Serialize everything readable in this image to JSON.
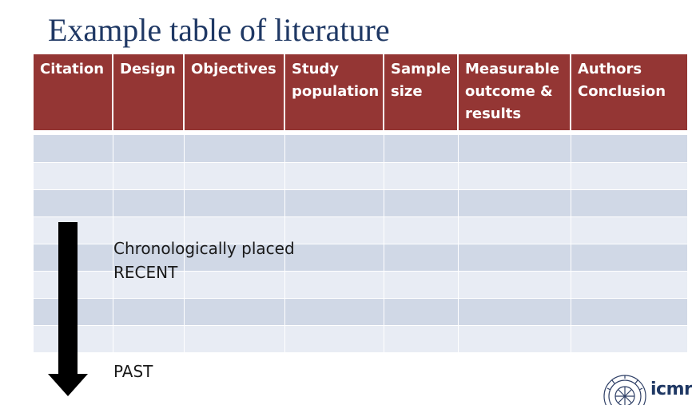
{
  "slide": {
    "title": "Example table of literature"
  },
  "table": {
    "headers": [
      "Citation",
      "Design",
      "Objectives",
      "Study\npopulation",
      "Sample\nsize",
      "Measurable\noutcome &\nresults",
      "Authors\nConclusion"
    ],
    "row_count": 8
  },
  "annotation": {
    "chronological": "Chronologically placed",
    "recent": "RECENT",
    "past": "PAST"
  },
  "logo": {
    "text": "icmr"
  },
  "colors": {
    "title": "#1f3864",
    "header_bg": "#943634",
    "row_dark": "#d0d8e6",
    "row_light": "#e8ecf4",
    "arrow": "#000000"
  }
}
